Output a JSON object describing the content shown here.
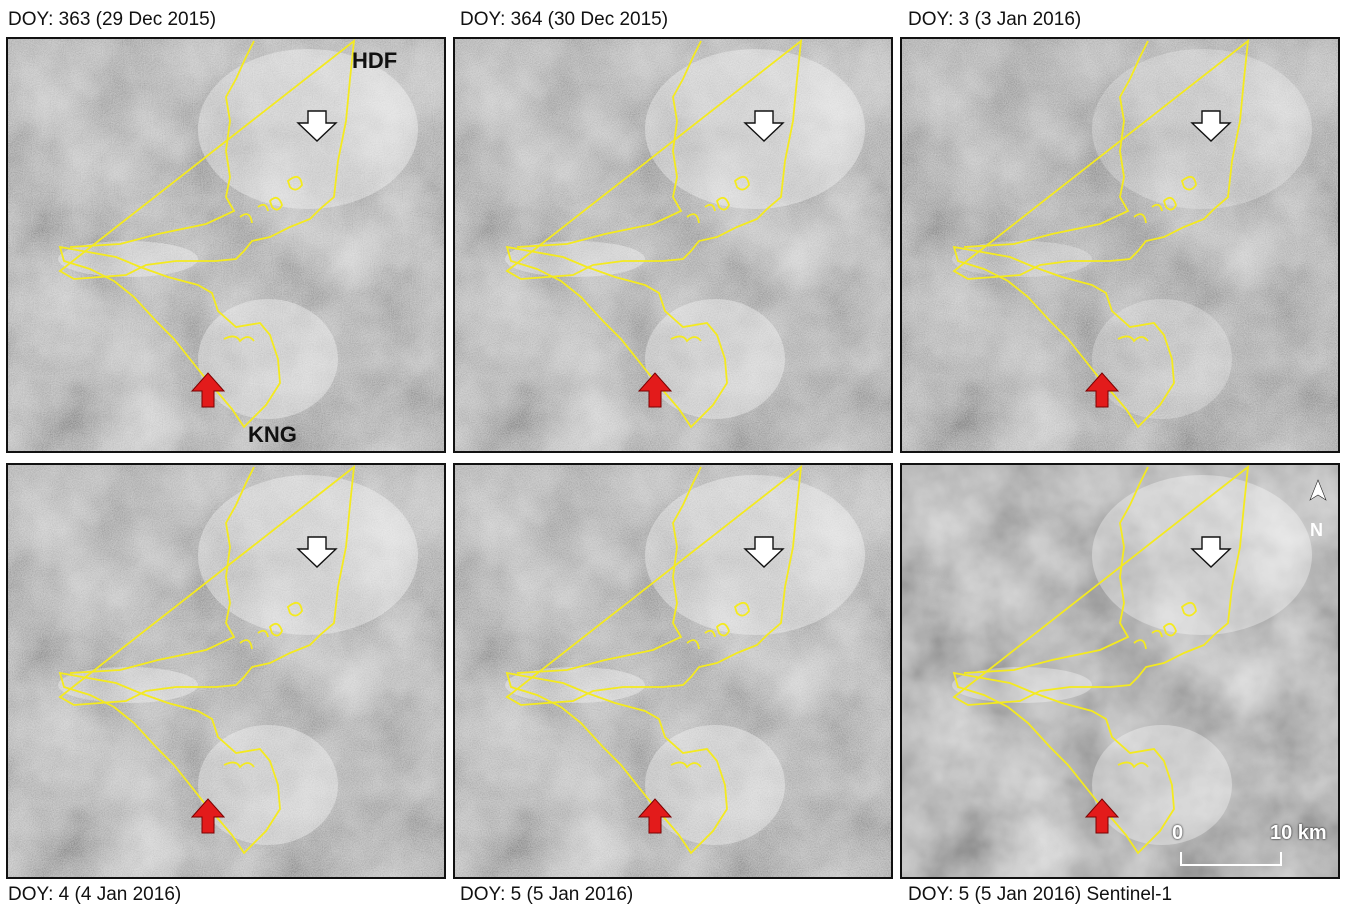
{
  "panels": [
    {
      "id": "p1",
      "caption": "DOY:  363 (29 Dec 2015)",
      "caption_pos": "above",
      "texture": "sar"
    },
    {
      "id": "p2",
      "caption": "DOY:  364 (30 Dec 2015)",
      "caption_pos": "above",
      "texture": "sar"
    },
    {
      "id": "p3",
      "caption": "DOY:  3 (3 Jan 2016)",
      "caption_pos": "above",
      "texture": "sar-dark"
    },
    {
      "id": "p4",
      "caption": "DOY:  4 (4 Jan 2016)",
      "caption_pos": "below",
      "texture": "sar"
    },
    {
      "id": "p5",
      "caption": "DOY:  5 (5 Jan 2016)",
      "caption_pos": "below",
      "texture": "sar"
    },
    {
      "id": "p6",
      "caption": "DOY:  5 (5 Jan 2016) Sentinel-1",
      "caption_pos": "below",
      "texture": "sentinel"
    }
  ],
  "labels": {
    "hdf": "HDF",
    "kng": "KNG"
  },
  "scale_bar": {
    "start": "0",
    "end": "10 km"
  },
  "north": {
    "label": "N"
  },
  "colors": {
    "outline": "#f4ea1f",
    "red_arrow": "#e31b1b",
    "white_arrow": "#ffffff",
    "frame": "#111111"
  },
  "icons": {
    "white_arrow": "down-arrow-icon",
    "red_arrow": "up-arrow-icon",
    "north": "north-arrow-icon"
  }
}
